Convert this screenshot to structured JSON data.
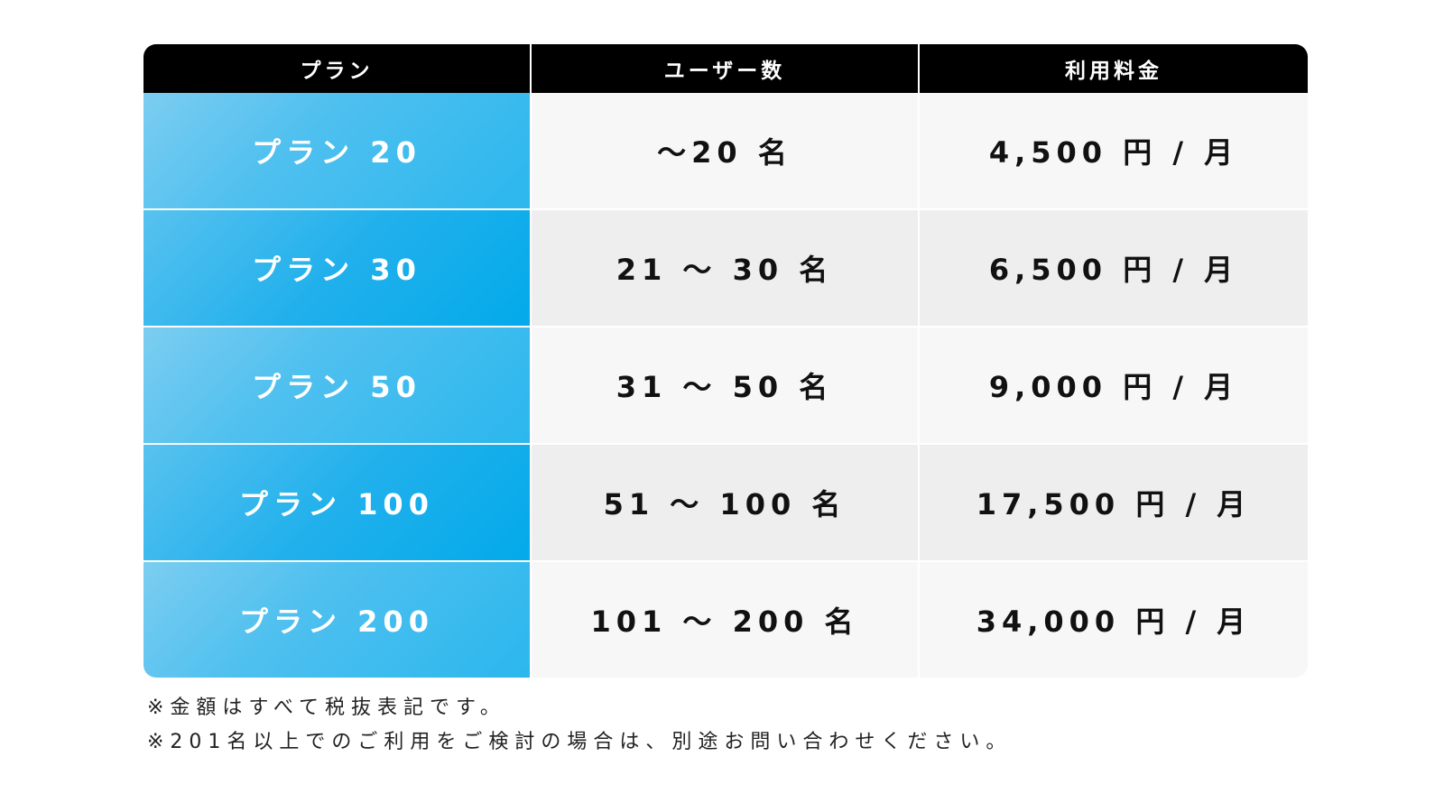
{
  "table": {
    "headers": [
      "プラン",
      "ユーザー数",
      "利用料金"
    ],
    "rows": [
      {
        "plan": "プラン 20",
        "users": "～20 名",
        "price": "4,500 円 / 月"
      },
      {
        "plan": "プラン 30",
        "users": "21 ～ 30 名",
        "price": "6,500 円 / 月"
      },
      {
        "plan": "プラン 50",
        "users": "31 ～ 50 名",
        "price": "9,000 円 / 月"
      },
      {
        "plan": "プラン 100",
        "users": "51 ～ 100 名",
        "price": "17,500 円 / 月"
      },
      {
        "plan": "プラン 200",
        "users": "101 ～ 200 名",
        "price": "34,000 円 / 月"
      }
    ]
  },
  "notes": [
    "※金額はすべて税抜表記です。",
    "※201名以上でのご利用をご検討の場合は、別途お問い合わせください。"
  ],
  "colors": {
    "header_bg": "#000000",
    "plan_accent": "#03aaea",
    "plan_accent_light": "#7ccdf0",
    "row_light": "#f7f7f7",
    "row_dark": "#eeeeee"
  }
}
